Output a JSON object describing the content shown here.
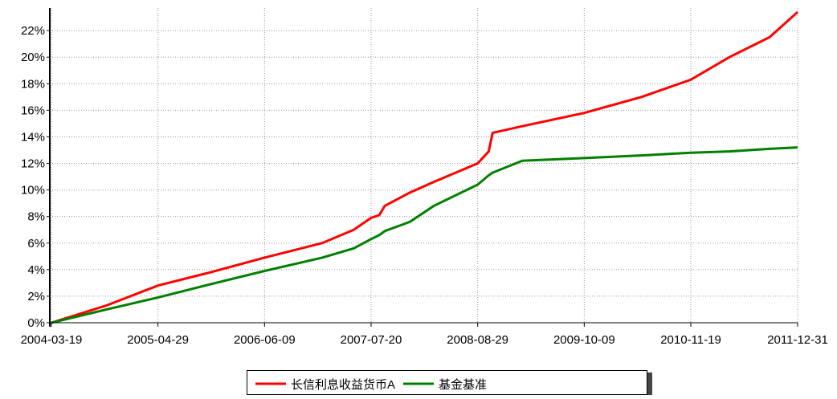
{
  "chart_data": {
    "type": "line",
    "x": [
      "2004-03-19",
      "2004-10-15",
      "2005-04-29",
      "2005-11-15",
      "2006-06-09",
      "2007-01-15",
      "2007-05-15",
      "2007-07-20",
      "2007-08-20",
      "2007-09-10",
      "2007-12-15",
      "2008-03-15",
      "2008-08-29",
      "2008-10-10",
      "2008-10-25",
      "2009-02-15",
      "2009-10-09",
      "2010-05-15",
      "2010-11-19",
      "2011-04-15",
      "2011-09-15",
      "2011-12-31"
    ],
    "series": [
      {
        "name": "长信利息收益货币A",
        "color": "#ff0000",
        "values": [
          0,
          1.3,
          2.8,
          3.8,
          4.9,
          6.0,
          7.0,
          7.9,
          8.1,
          8.8,
          9.8,
          10.6,
          12.0,
          12.9,
          14.3,
          14.8,
          15.8,
          17.0,
          18.3,
          20.0,
          21.5,
          23.4
        ]
      },
      {
        "name": "基金基准",
        "color": "#008000",
        "values": [
          0,
          1.0,
          1.9,
          2.9,
          3.9,
          4.9,
          5.6,
          6.3,
          6.6,
          6.9,
          7.6,
          8.8,
          10.4,
          11.1,
          11.3,
          12.2,
          12.4,
          12.6,
          12.8,
          12.9,
          13.1,
          13.2
        ]
      }
    ],
    "xlim": [
      "2004-03-13",
      "2011-12-31"
    ],
    "xticks": [
      "2004-03-19",
      "2005-04-29",
      "2006-06-09",
      "2007-07-20",
      "2008-08-29",
      "2009-10-09",
      "2010-11-19",
      "2011-12-31"
    ],
    "ylim": [
      0,
      23.7
    ],
    "yticks": [
      {
        "value": 0,
        "label": "0%"
      },
      {
        "value": 2,
        "label": "2%"
      },
      {
        "value": 4,
        "label": "4%"
      },
      {
        "value": 6,
        "label": "6%"
      },
      {
        "value": 8,
        "label": "8%"
      },
      {
        "value": 10,
        "label": "10%"
      },
      {
        "value": 12,
        "label": "12%"
      },
      {
        "value": 14,
        "label": "14%"
      },
      {
        "value": 16,
        "label": "16%"
      },
      {
        "value": 18,
        "label": "18%"
      },
      {
        "value": 20,
        "label": "20%"
      },
      {
        "value": 22,
        "label": "22%"
      }
    ],
    "grid": true,
    "legend": "bottom"
  }
}
